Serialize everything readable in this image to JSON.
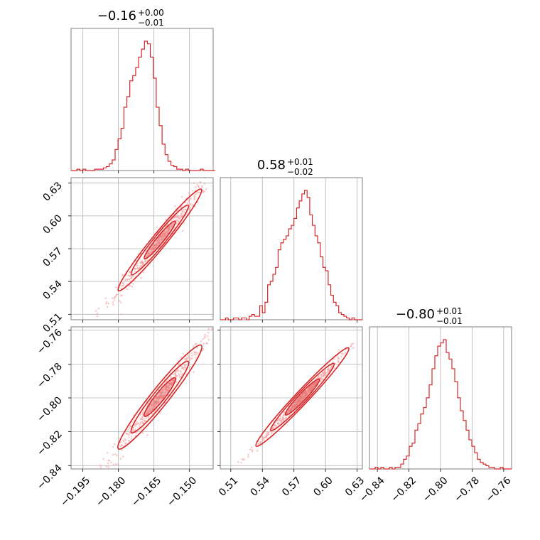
{
  "colors": {
    "line": "#d62728",
    "grid": "#b0b0b0",
    "frame": "#808080",
    "scatter": "#f4a3a3"
  },
  "chart_data": [
    {
      "type": "histogram",
      "parameter_index": 0,
      "title": {
        "median": "−0.16",
        "plus": "+0.00",
        "minus": "−0.01"
      },
      "xlim": [
        -0.2,
        -0.14
      ],
      "grid": true,
      "bins": [
        -0.2,
        -0.138
      ],
      "counts": [
        0,
        0,
        1,
        0,
        1,
        0,
        0,
        0,
        1,
        1,
        1,
        2,
        3,
        5,
        8,
        16,
        24,
        32,
        48,
        56,
        68,
        72,
        78,
        86,
        92,
        98,
        96,
        86,
        70,
        48,
        34,
        20,
        12,
        7,
        4,
        3,
        1,
        1,
        0,
        1,
        0,
        0,
        0,
        0,
        1,
        0,
        0,
        0,
        0,
        0
      ]
    },
    {
      "type": "histogram",
      "parameter_index": 1,
      "title": {
        "median": "0.58",
        "plus": "+0.01",
        "minus": "−0.02"
      },
      "xlim": [
        0.5,
        0.635
      ],
      "grid": true,
      "bins": [
        0.5,
        0.635
      ],
      "counts": [
        0,
        0,
        1,
        0,
        0,
        1,
        1,
        0,
        1,
        1,
        0,
        2,
        3,
        2,
        2,
        8,
        4,
        10,
        20,
        22,
        26,
        30,
        40,
        44,
        46,
        48,
        52,
        54,
        58,
        64,
        68,
        72,
        74,
        70,
        60,
        54,
        48,
        44,
        36,
        30,
        28,
        20,
        14,
        10,
        8,
        4,
        3,
        2,
        1,
        0,
        1,
        0,
        0,
        0
      ]
    },
    {
      "type": "histogram",
      "parameter_index": 2,
      "title": {
        "median": "−0.80",
        "plus": "+0.01",
        "minus": "−0.01"
      },
      "xlim": [
        -0.845,
        -0.755
      ],
      "grid": true,
      "bins": [
        -0.845,
        -0.755
      ],
      "counts": [
        0,
        0,
        1,
        0,
        1,
        0,
        0,
        1,
        0,
        1,
        1,
        3,
        6,
        8,
        14,
        16,
        24,
        28,
        34,
        38,
        44,
        52,
        62,
        70,
        76,
        78,
        80,
        72,
        68,
        62,
        54,
        44,
        36,
        30,
        24,
        18,
        14,
        10,
        6,
        4,
        3,
        2,
        1,
        1,
        0,
        0,
        1,
        0,
        0,
        0
      ]
    },
    {
      "type": "scatter",
      "x_index": 0,
      "y_index": 1,
      "xlim": [
        -0.2,
        -0.14
      ],
      "ylim": [
        0.505,
        0.635
      ],
      "grid": true,
      "center": [
        -0.1625,
        0.578
      ],
      "slope": 2.65,
      "spread_along": 0.0105,
      "spread_across": 0.0021,
      "contours": [
        {
          "level": 1,
          "half_length": 0.0065,
          "half_width": 0.0009
        },
        {
          "level": 2,
          "half_length": 0.012,
          "half_width": 0.0017
        },
        {
          "level": 3,
          "half_length": 0.0175,
          "half_width": 0.0024
        }
      ]
    },
    {
      "type": "scatter",
      "x_index": 0,
      "y_index": 2,
      "xlim": [
        -0.2,
        -0.14
      ],
      "ylim": [
        -0.842,
        -0.758
      ],
      "grid": true,
      "center": [
        -0.1625,
        -0.7995
      ],
      "slope": 1.75,
      "spread_along": 0.0105,
      "spread_across": 0.0017,
      "contours": [
        {
          "level": 1,
          "half_length": 0.0065,
          "half_width": 0.0008
        },
        {
          "level": 2,
          "half_length": 0.012,
          "half_width": 0.0014
        },
        {
          "level": 3,
          "half_length": 0.0175,
          "half_width": 0.002
        }
      ]
    },
    {
      "type": "scatter",
      "x_index": 1,
      "y_index": 2,
      "xlim": [
        0.5,
        0.635
      ],
      "ylim": [
        -0.842,
        -0.758
      ],
      "grid": true,
      "center": [
        0.578,
        -0.7995
      ],
      "slope": 0.66,
      "spread_along": 0.021,
      "spread_across": 0.0012,
      "contours": [
        {
          "level": 1,
          "half_length": 0.016,
          "half_width": 0.0006
        },
        {
          "level": 2,
          "half_length": 0.03,
          "half_width": 0.001
        },
        {
          "level": 3,
          "half_length": 0.044,
          "half_width": 0.0014
        }
      ]
    }
  ],
  "axes": {
    "p0": {
      "ticks": [
        -0.195,
        -0.18,
        -0.165,
        -0.15
      ],
      "labels": [
        "−0.195",
        "−0.180",
        "−0.165",
        "−0.150"
      ]
    },
    "p1": {
      "ticks": [
        0.51,
        0.54,
        0.57,
        0.6,
        0.63
      ],
      "labels": [
        "0.51",
        "0.54",
        "0.57",
        "0.60",
        "0.63"
      ]
    },
    "p2": {
      "ticks": [
        -0.84,
        -0.82,
        -0.8,
        -0.78,
        -0.76
      ],
      "labels": [
        "−0.84",
        "−0.82",
        "−0.80",
        "−0.78",
        "−0.76"
      ]
    }
  }
}
